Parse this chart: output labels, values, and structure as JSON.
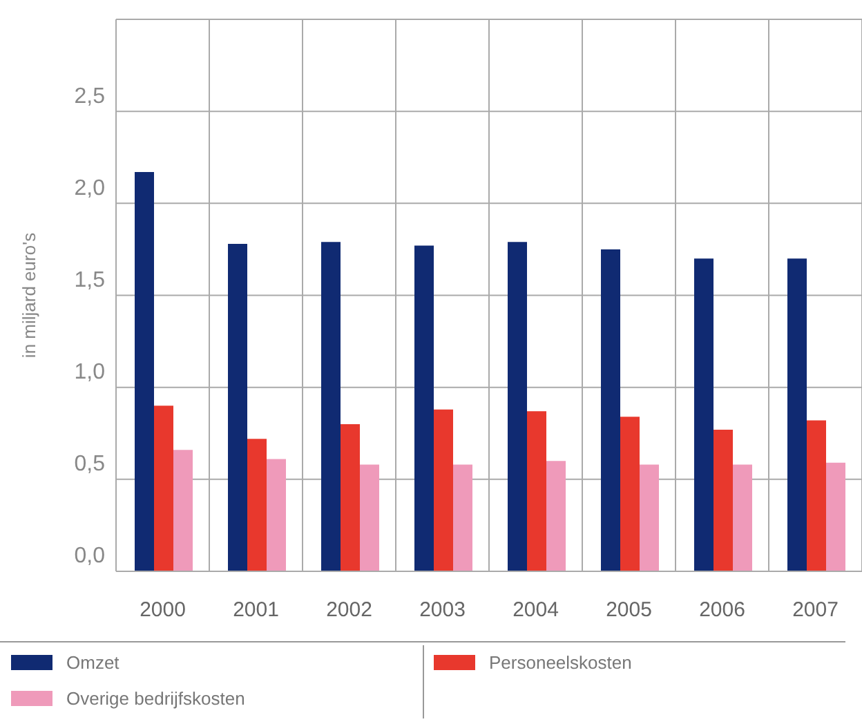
{
  "chart_data": {
    "type": "bar",
    "ylabel": "in miljard euro's",
    "categories": [
      "2000",
      "2001",
      "2002",
      "2003",
      "2004",
      "2005",
      "2006",
      "2007"
    ],
    "series": [
      {
        "name": "Omzet",
        "color": "#102a72",
        "values": [
          2.17,
          1.78,
          1.79,
          1.77,
          1.79,
          1.75,
          1.7,
          1.7
        ]
      },
      {
        "name": "Personeelskosten",
        "color": "#e8382d",
        "values": [
          0.9,
          0.72,
          0.8,
          0.88,
          0.87,
          0.84,
          0.77,
          0.82
        ]
      },
      {
        "name": "Overige bedrijfskosten",
        "color": "#ef9aba",
        "values": [
          0.66,
          0.61,
          0.58,
          0.58,
          0.6,
          0.58,
          0.58,
          0.59
        ]
      }
    ],
    "ylim": [
      0,
      3
    ],
    "yticks": [
      {
        "value": 0,
        "label": "0,0"
      },
      {
        "value": 0.5,
        "label": "0,5"
      },
      {
        "value": 1,
        "label": "1,0"
      },
      {
        "value": 1.5,
        "label": "1,5"
      },
      {
        "value": 2,
        "label": "2,0"
      },
      {
        "value": 2.5,
        "label": "2,5"
      },
      {
        "value": 3,
        "label": null
      }
    ],
    "grid": true,
    "legend": "bottom"
  }
}
